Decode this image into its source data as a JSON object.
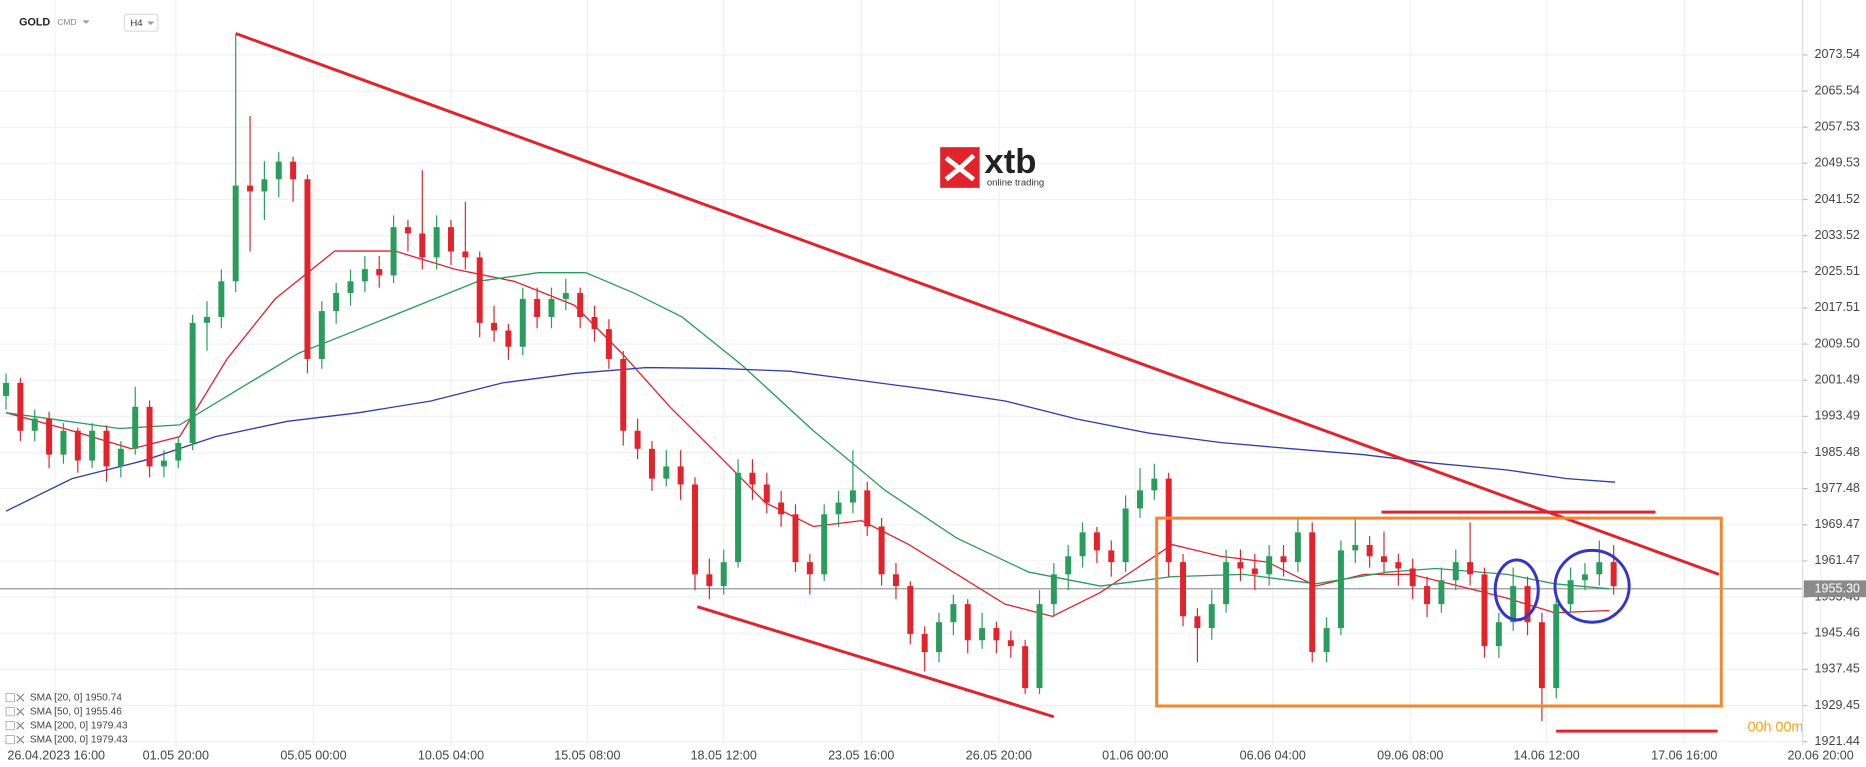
{
  "chart_data": {
    "type": "candlestick",
    "symbol": "GOLD",
    "symbol_type": "CMD",
    "timeframe": "H4",
    "brand": "xtb",
    "brand_tagline": "online trading",
    "countdown": "00h 00m",
    "up_color": "#2a9d5c",
    "down_color": "#e3232c",
    "grid": true,
    "ylim": [
      1920.6,
      2085.7
    ],
    "yticks": [
      2073.54,
      2065.54,
      2057.53,
      2049.53,
      2041.52,
      2033.52,
      2025.51,
      2017.51,
      {
        "value": 2009.5,
        "label": "2009.50"
      },
      2001.49,
      1993.49,
      1985.48,
      1977.48,
      1969.47,
      1961.47,
      1953.46,
      1945.46,
      1937.45,
      1929.45,
      1921.44
    ],
    "last_price": {
      "value": 1955.3,
      "label": "1955.30"
    },
    "xlim": [
      -0.42,
      129.58
    ],
    "xticks": [
      {
        "value": 3.4,
        "label": "26.04.2023 16:00"
      },
      {
        "value": 11.83,
        "label": "01.05 20:00"
      },
      {
        "value": 21.42,
        "label": "05.05 00:00"
      },
      {
        "value": 31,
        "label": "10.05 04:00"
      },
      {
        "value": 40.5,
        "label": "15.05 08:00"
      },
      {
        "value": 50,
        "label": "18.05 12:00"
      },
      {
        "value": 59.58,
        "label": "23.05 16:00"
      },
      {
        "value": 69.17,
        "label": "26.05 20:00"
      },
      {
        "value": 78.67,
        "label": "01.06 00:00"
      },
      {
        "value": 88.25,
        "label": "06.06 04:00"
      },
      {
        "value": 97.83,
        "label": "09.06 08:00"
      },
      {
        "value": 107.33,
        "label": "14.06 12:00"
      },
      {
        "value": 116.92,
        "label": "17.06 16:00"
      },
      {
        "value": 126.42,
        "label": "20.06 20:00"
      }
    ],
    "candles": [
      [
        1998,
        2003,
        1995,
        2000.9
      ],
      [
        2000.9,
        2002,
        1988,
        1990.3
      ],
      [
        1990.3,
        1995,
        1988,
        1993
      ],
      [
        1993,
        1994.5,
        1982,
        1985
      ],
      [
        1985,
        1992,
        1983,
        1990.3
      ],
      [
        1990.3,
        1991,
        1981,
        1983.7
      ],
      [
        1983.7,
        1992,
        1982,
        1990.3
      ],
      [
        1990.3,
        1991.5,
        1979,
        1982.4
      ],
      [
        1982.4,
        1988,
        1980,
        1986.3
      ],
      [
        1986.3,
        2000,
        1985,
        1995.6
      ],
      [
        1995.6,
        1997,
        1980,
        1982.4
      ],
      [
        1982.4,
        1986,
        1980,
        1983.7
      ],
      [
        1983.7,
        1989,
        1982,
        1987.6
      ],
      [
        1987.6,
        2016,
        1986,
        2014.2
      ],
      [
        2014.2,
        2019,
        2008,
        2015.5
      ],
      [
        2015.5,
        2026,
        2013,
        2023.4
      ],
      [
        2023.4,
        2078,
        2021,
        2044.6
      ],
      [
        2044.6,
        2060,
        2030,
        2043.3
      ],
      [
        2043.3,
        2050,
        2037,
        2046
      ],
      [
        2046,
        2052,
        2042,
        2049.9
      ],
      [
        2049.9,
        2051,
        2041,
        2046
      ],
      [
        2046,
        2047,
        2003,
        2006.2
      ],
      [
        2006.2,
        2019,
        2004,
        2016.8
      ],
      [
        2016.8,
        2023,
        2014,
        2020.8
      ],
      [
        2020.8,
        2026,
        2018,
        2023.4
      ],
      [
        2023.4,
        2029,
        2021,
        2026.1
      ],
      [
        2026.1,
        2029,
        2022,
        2024.7
      ],
      [
        2024.7,
        2038,
        2023,
        2035.4
      ],
      [
        2035.4,
        2037,
        2030,
        2034
      ],
      [
        2034,
        2048,
        2026,
        2028.7
      ],
      [
        2028.7,
        2038,
        2026,
        2035.4
      ],
      [
        2035.4,
        2037,
        2027,
        2030
      ],
      [
        2030,
        2041,
        2026,
        2028.7
      ],
      [
        2028.7,
        2030,
        2011,
        2014.2
      ],
      [
        2014.2,
        2018,
        2010,
        2012.5
      ],
      [
        2012.5,
        2014,
        2006,
        2008.9
      ],
      [
        2008.9,
        2022,
        2007,
        2019.5
      ],
      [
        2019.5,
        2022,
        2013,
        2015.5
      ],
      [
        2015.5,
        2022,
        2013,
        2019.5
      ],
      [
        2019.5,
        2024,
        2017,
        2020.8
      ],
      [
        2020.8,
        2022,
        2013,
        2015.5
      ],
      [
        2015.5,
        2018,
        2010,
        2012.8
      ],
      [
        2012.8,
        2015,
        2004,
        2006.2
      ],
      [
        2006.2,
        2008,
        1987,
        1990.3
      ],
      [
        1990.3,
        1993,
        1984,
        1986.3
      ],
      [
        1986.3,
        1988,
        1977,
        1979.7
      ],
      [
        1979.7,
        1986,
        1978,
        1982.4
      ],
      [
        1982.4,
        1986,
        1975,
        1978.4
      ],
      [
        1978.4,
        1980,
        1955,
        1958.5
      ],
      [
        1958.5,
        1962,
        1953,
        1955.9
      ],
      [
        1955.9,
        1964,
        1954,
        1961.2
      ],
      [
        1961.2,
        1984,
        1960,
        1981
      ],
      [
        1981,
        1984,
        1975,
        1978.4
      ],
      [
        1978.4,
        1981,
        1972,
        1974.4
      ],
      [
        1974.4,
        1977,
        1969,
        1971.8
      ],
      [
        1971.8,
        1974,
        1959,
        1961.2
      ],
      [
        1961.2,
        1963,
        1954,
        1958.5
      ],
      [
        1958.5,
        1974,
        1957,
        1971.8
      ],
      [
        1971.8,
        1977,
        1969,
        1974.4
      ],
      [
        1974.4,
        1986,
        1972,
        1977.1
      ],
      [
        1977.1,
        1979,
        1967,
        1969.1
      ],
      [
        1969.1,
        1971,
        1956,
        1958.5
      ],
      [
        1958.5,
        1961,
        1953,
        1955.9
      ],
      [
        1955.9,
        1957,
        1943,
        1945.3
      ],
      [
        1945.3,
        1947,
        1937,
        1941.3
      ],
      [
        1941.3,
        1950,
        1939,
        1947.9
      ],
      [
        1947.9,
        1954,
        1945,
        1951.9
      ],
      [
        1951.9,
        1953,
        1941,
        1943.9
      ],
      [
        1943.9,
        1950,
        1942,
        1946.6
      ],
      [
        1946.6,
        1948,
        1941,
        1943.9
      ],
      [
        1943.9,
        1946,
        1940,
        1942.6
      ],
      [
        1942.6,
        1944,
        1932,
        1933.3
      ],
      [
        1933.3,
        1955,
        1932,
        1951.9
      ],
      [
        1951.9,
        1961,
        1949,
        1958.5
      ],
      [
        1958.5,
        1965,
        1955,
        1962.5
      ],
      [
        1962.5,
        1970,
        1960,
        1967.8
      ],
      [
        1967.8,
        1969,
        1961,
        1963.8
      ],
      [
        1963.8,
        1966,
        1958,
        1961.2
      ],
      [
        1961.2,
        1976,
        1959,
        1973.1
      ],
      [
        1973.1,
        1982,
        1971,
        1977.1
      ],
      [
        1977.1,
        1983,
        1975,
        1979.7
      ],
      [
        1979.7,
        1981,
        1958,
        1961.2
      ],
      [
        1961.2,
        1963,
        1947,
        1949.2
      ],
      [
        1949.2,
        1951,
        1939,
        1946.6
      ],
      [
        1946.6,
        1955,
        1944,
        1951.9
      ],
      [
        1951.9,
        1964,
        1950,
        1961.2
      ],
      [
        1961.2,
        1964,
        1957,
        1959.8
      ],
      [
        1959.8,
        1963,
        1955,
        1958.5
      ],
      [
        1958.5,
        1965,
        1956,
        1962.5
      ],
      [
        1962.5,
        1965,
        1958,
        1961.2
      ],
      [
        1961.2,
        1971,
        1959,
        1967.8
      ],
      [
        1967.8,
        1970,
        1939,
        1941.3
      ],
      [
        1941.3,
        1949,
        1939,
        1946.6
      ],
      [
        1946.6,
        1966,
        1945,
        1963.8
      ],
      [
        1963.8,
        1971,
        1961,
        1965
      ],
      [
        1965,
        1967,
        1960,
        1962.5
      ],
      [
        1962.5,
        1968,
        1959,
        1961.2
      ],
      [
        1961.2,
        1963,
        1956,
        1959.8
      ],
      [
        1959.8,
        1962,
        1953,
        1955.9
      ],
      [
        1955.9,
        1958,
        1949,
        1951.9
      ],
      [
        1951.9,
        1960,
        1950,
        1957.2
      ],
      [
        1957.2,
        1964,
        1955,
        1961.2
      ],
      [
        1961.2,
        1970,
        1956,
        1958.5
      ],
      [
        1958.5,
        1960,
        1940,
        1942.6
      ],
      [
        1942.6,
        1950,
        1940,
        1947.9
      ],
      [
        1947.9,
        1960,
        1946,
        1955.9
      ],
      [
        1955.9,
        1958,
        1945,
        1947.9
      ],
      [
        1947.9,
        1950,
        1926,
        1933.3
      ],
      [
        1933.3,
        1954,
        1931,
        1951.9
      ],
      [
        1951.9,
        1960,
        1950,
        1957.2
      ],
      [
        1957.2,
        1961,
        1955,
        1958.5
      ],
      [
        1958.5,
        1966,
        1956,
        1961.2
      ],
      [
        1961.2,
        1965,
        1954,
        1955.9
      ]
    ],
    "series": [
      {
        "name": "SMA [20, 0] 1950.74",
        "color": "#e3232c",
        "x": [
          0,
          4.6,
          8.75,
          12.1,
          15.4,
          18.75,
          22.9,
          27.1,
          31.25,
          35.4,
          39.6,
          42.9,
          46.25,
          49.6,
          52.9,
          56.25,
          59.6,
          62.9,
          66.25,
          69.6,
          72.9,
          76.25,
          78.75,
          81.25,
          84.6,
          87.9,
          91.25,
          94.6,
          97.9,
          101.25,
          104.6,
          107.9,
          111.7
        ],
        "values": [
          1994.3,
          1990.3,
          1986.3,
          1989,
          2006.2,
          2019.5,
          2030.1,
          2030.1,
          2026.1,
          2023.4,
          2018.1,
          2007.5,
          1995.6,
          1985,
          1974.4,
          1969.1,
          1970.4,
          1965.1,
          1958.5,
          1951.9,
          1949.2,
          1954.5,
          1959.8,
          1965.1,
          1962.5,
          1961.2,
          1955.9,
          1958.5,
          1958.5,
          1955.9,
          1953.2,
          1950,
          1950.5
        ]
      },
      {
        "name": "SMA [50, 0] 1955.46",
        "color": "#2a9d5c",
        "x": [
          0,
          7.9,
          12.1,
          16.25,
          20.4,
          24.6,
          28.75,
          32.9,
          37.1,
          40.4,
          43.75,
          47.1,
          51.25,
          56.25,
          61.25,
          66.25,
          71.25,
          76.25,
          81.25,
          86.25,
          91.25,
          96.25,
          99.6,
          104.6,
          107.9,
          111.7
        ],
        "values": [
          1994.3,
          1990.8,
          1991.6,
          1999.6,
          2007.5,
          2012.8,
          2018.1,
          2023.4,
          2025.3,
          2025.3,
          2020.8,
          2015.5,
          2004.9,
          1990.3,
          1977.1,
          1966.5,
          1959,
          1955.9,
          1958,
          1958.5,
          1956.4,
          1959,
          1959.8,
          1958.5,
          1956.4,
          1955.3
        ]
      },
      {
        "name": "SMA [200, 0] 1979.43",
        "color": "#2f3fa8",
        "x": [
          0,
          4.6,
          9.6,
          14.6,
          19.6,
          24.6,
          29.6,
          34.6,
          39.6,
          44.6,
          49.6,
          54.6,
          59.6,
          64.6,
          69.6,
          74.6,
          79.6,
          84.6,
          89.6,
          94.6,
          99.6,
          104.6,
          108.75,
          112.1
        ],
        "values": [
          1972.5,
          1979.7,
          1983.7,
          1989,
          1992.4,
          1994.3,
          1996.9,
          2000.9,
          2003,
          2004.3,
          2004.1,
          2003.5,
          2001.4,
          1999.3,
          1996.9,
          1992.9,
          1989.8,
          1987.7,
          1986.3,
          1985,
          1983.1,
          1981.6,
          1979.7,
          1978.9
        ]
      },
      {
        "name": "SMA [200, 0] 1979.43",
        "color": "#2f3fa8",
        "x": [],
        "values": []
      }
    ]
  }
}
